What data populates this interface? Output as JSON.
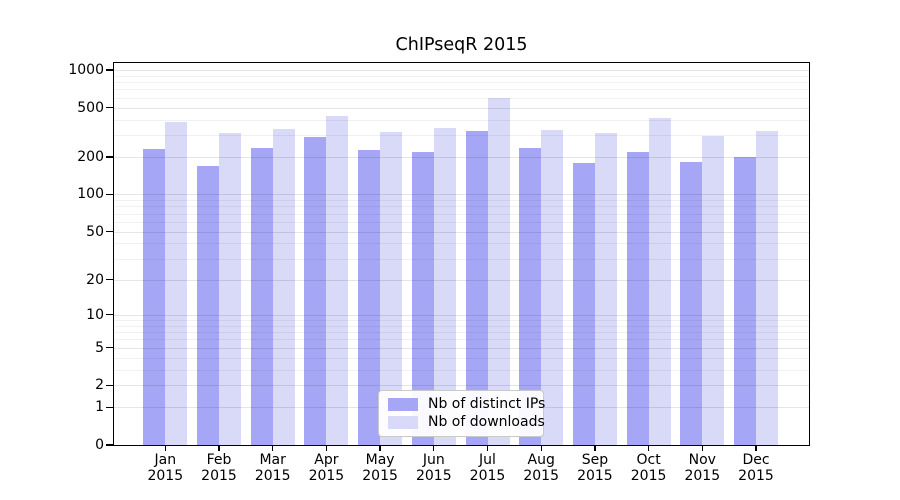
{
  "chart_data": {
    "type": "bar",
    "title": "ChIPseqR 2015",
    "categories": [
      "Jan",
      "Feb",
      "Mar",
      "Apr",
      "May",
      "Jun",
      "Jul",
      "Aug",
      "Sep",
      "Oct",
      "Nov",
      "Dec"
    ],
    "category_year": "2015",
    "series": [
      {
        "name": "Nb of distinct IPs",
        "key": "distinct-ips",
        "color": "#a6a6f6",
        "values": [
          231,
          170,
          235,
          292,
          229,
          221,
          323,
          235,
          178,
          218,
          184,
          199
        ]
      },
      {
        "name": "Nb of downloads",
        "key": "downloads",
        "color": "#d9d9f8",
        "values": [
          385,
          311,
          336,
          428,
          318,
          340,
          593,
          329,
          311,
          415,
          296,
          327
        ]
      }
    ],
    "y_axis": {
      "scale": "log1p",
      "tick_values": [
        0,
        1,
        2,
        5,
        10,
        20,
        50,
        100,
        200,
        500,
        1000
      ],
      "tick_labels": [
        "0",
        "1",
        "2",
        "5",
        "10",
        "20",
        "50",
        "100",
        "200",
        "500",
        "1000"
      ],
      "range_max": 1150
    },
    "grid": {
      "horizontal": true,
      "vertical": false,
      "minor_values": [
        3,
        4,
        6,
        7,
        8,
        9,
        30,
        40,
        60,
        70,
        80,
        90,
        300,
        400,
        600,
        700,
        800,
        900
      ]
    },
    "legend": {
      "position": "inside-bottom-center"
    },
    "colors": {
      "axis": "#000000",
      "grid_major": "rgba(0,0,0,0.10)",
      "grid_minor": "rgba(0,0,0,0.055)",
      "background": "#ffffff"
    }
  }
}
